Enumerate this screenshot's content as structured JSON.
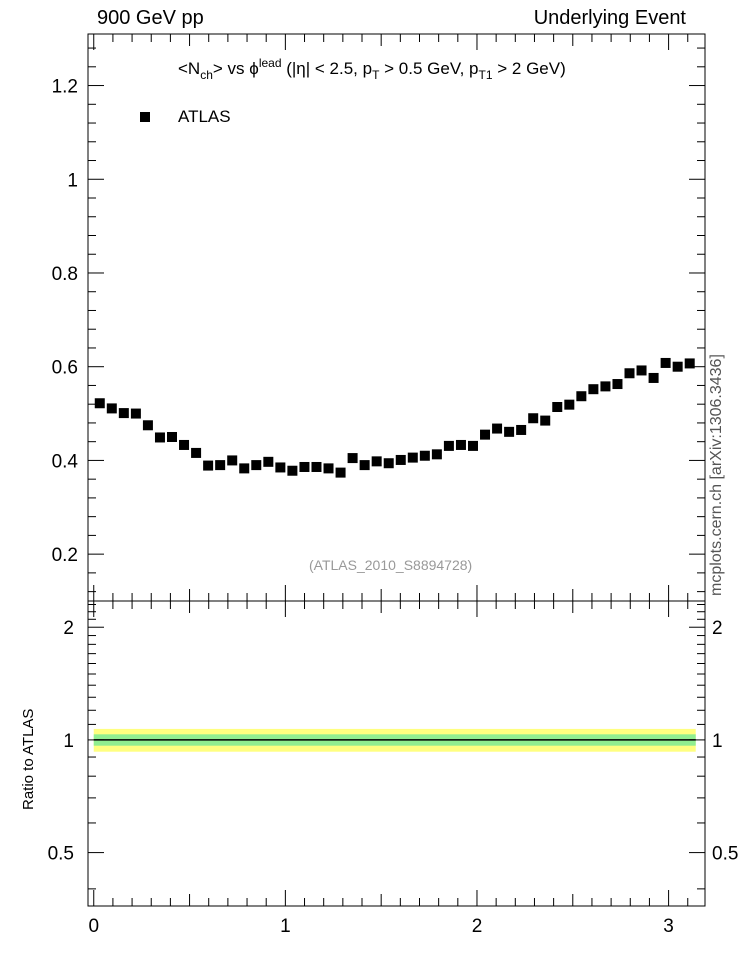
{
  "header": {
    "left": "900 GeV pp",
    "right": "Underlying Event",
    "side_note": "mcplots.cern.ch [arXiv:1306.3436]"
  },
  "plot": {
    "title_parts": {
      "n_open": "<N",
      "n_sub": "ch",
      "vs": "> vs ",
      "phi": "ϕ",
      "phi_sup": "lead",
      "cuts_1": " (|η| < 2.5, p",
      "pt_sub": "T",
      "cuts_2": " > 0.5 GeV, p",
      "pt1_sub": "T1",
      "cuts_3": " > 2 GeV)"
    },
    "legend_label": "ATLAS",
    "reference_label": "(ATLAS_2010_S8894728)",
    "ratio_ylabel": "Ratio to ATLAS"
  },
  "colors": {
    "markers": "#000000",
    "ratio_band_outer": "#ffff80",
    "ratio_band_inner": "#90ee90",
    "reference_text": "#999999"
  },
  "chart_data": [
    {
      "type": "scatter",
      "title": "<Nch> vs ϕlead (|η| < 2.5, pT > 0.5 GeV, pT1 > 2 GeV)",
      "xlabel": "",
      "ylabel": "",
      "xlim": [
        -0.03,
        3.19
      ],
      "ylim": [
        0.1,
        1.31
      ],
      "x_ticks": [
        "0",
        "1",
        "2",
        "3"
      ],
      "y_ticks": [
        "0.2",
        "0.4",
        "0.6",
        "0.8",
        "1",
        "1.2"
      ],
      "legend": "top-left",
      "series": [
        {
          "name": "ATLAS",
          "x": [
            0.0314,
            0.0942,
            0.157,
            0.2199,
            0.2827,
            0.3456,
            0.4084,
            0.4712,
            0.5341,
            0.5969,
            0.6597,
            0.7226,
            0.7854,
            0.8482,
            0.9111,
            0.9739,
            1.0367,
            1.0996,
            1.1624,
            1.2252,
            1.2881,
            1.3509,
            1.4137,
            1.4765,
            1.5394,
            1.6022,
            1.665,
            1.7279,
            1.7907,
            1.8535,
            1.9164,
            1.9792,
            2.042,
            2.1049,
            2.1677,
            2.2305,
            2.2934,
            2.3562,
            2.419,
            2.4819,
            2.5447,
            2.6075,
            2.6704,
            2.7332,
            2.796,
            2.8588,
            2.9217,
            2.9845,
            3.0473,
            3.1102
          ],
          "y": [
            0.522,
            0.511,
            0.501,
            0.5,
            0.475,
            0.449,
            0.45,
            0.433,
            0.416,
            0.389,
            0.39,
            0.4,
            0.383,
            0.39,
            0.397,
            0.385,
            0.378,
            0.386,
            0.386,
            0.383,
            0.374,
            0.405,
            0.39,
            0.398,
            0.394,
            0.401,
            0.406,
            0.41,
            0.413,
            0.431,
            0.433,
            0.431,
            0.455,
            0.468,
            0.461,
            0.465,
            0.49,
            0.485,
            0.514,
            0.519,
            0.537,
            0.552,
            0.558,
            0.563,
            0.586,
            0.592,
            0.576,
            0.608,
            0.6,
            0.607
          ]
        }
      ]
    },
    {
      "type": "area",
      "title": "",
      "xlabel": "",
      "ylabel": "Ratio to ATLAS",
      "xlim": [
        -0.03,
        3.19
      ],
      "ylim": [
        0.36,
        2.35
      ],
      "x_ticks": [
        "0",
        "1",
        "2",
        "3"
      ],
      "y_ticks": [
        "0.5",
        "1",
        "2"
      ],
      "log_scale_y": true,
      "series": [
        {
          "name": "",
          "values": [
            0.93,
            1.07
          ]
        },
        {
          "name": "",
          "values": [
            0.965,
            1.035
          ]
        },
        {
          "name": "",
          "values": [
            1.0
          ]
        }
      ]
    }
  ]
}
